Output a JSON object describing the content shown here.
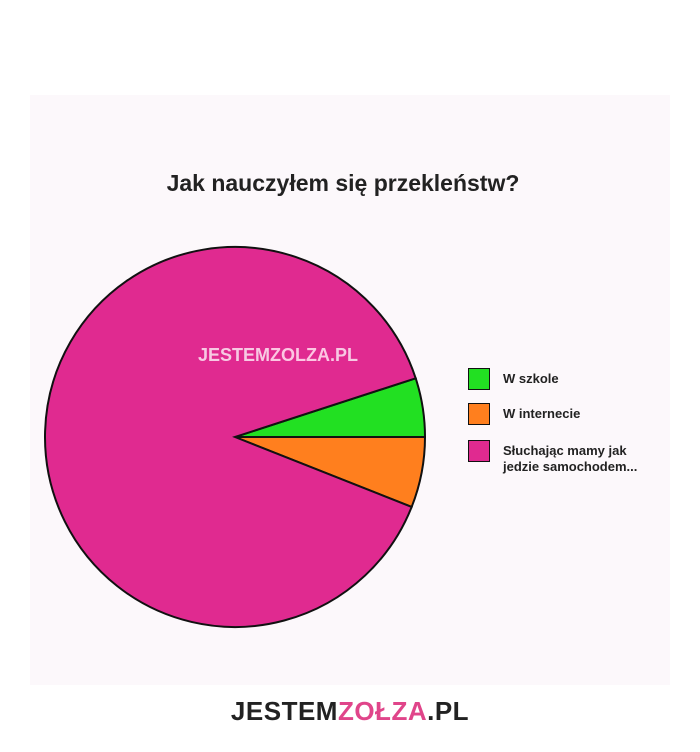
{
  "chart_data": {
    "type": "pie",
    "title": "Jak nauczyłem się przekleństw?",
    "categories": [
      "W szkole",
      "W internecie",
      "Słuchając mamy jak jedzie samochodem..."
    ],
    "values": [
      5,
      6,
      89
    ],
    "colors": [
      "#22e022",
      "#ff7f1e",
      "#e02a90"
    ]
  },
  "watermark": {
    "center": {
      "prefix": "JESTEM",
      "brand": "ZOLZA",
      "suffix": ".PL"
    },
    "footer": {
      "prefix": "JESTEM",
      "brand": "ZOŁZA",
      "suffix": ".PL"
    }
  }
}
